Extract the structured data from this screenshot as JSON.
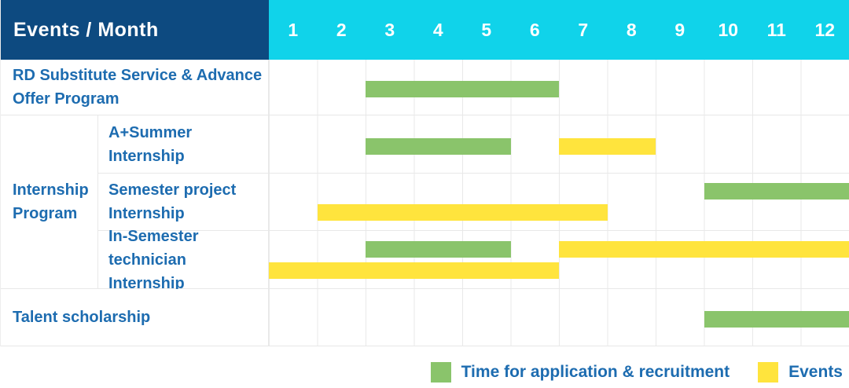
{
  "colors": {
    "header_bg": "#0d4a80",
    "month_header_bg": "#10d3ea",
    "header_text": "#ffffff",
    "label_text": "#1d6cb0",
    "grid_line": "#e9e9e9",
    "green": "#8ac46b",
    "yellow": "#ffe43d"
  },
  "chart_data": {
    "type": "table",
    "subtype": "gantt-timeline",
    "title": "Events / Month",
    "x_categories": [
      "1",
      "2",
      "3",
      "4",
      "5",
      "6",
      "7",
      "8",
      "9",
      "10",
      "11",
      "12"
    ],
    "x_range": [
      1,
      12
    ],
    "grid": true,
    "legend_position": "bottom-right",
    "legend": [
      {
        "label": "Time for application & recruitment",
        "color_key": "green",
        "color": "#8ac46b"
      },
      {
        "label": "Events",
        "color_key": "yellow",
        "color": "#ffe43d"
      }
    ],
    "rows": [
      {
        "group": "",
        "label": "RD Substitute Service & Advance Offer Program",
        "bars": [
          {
            "series": "Time for application & recruitment",
            "color": "green",
            "start_month": 3,
            "end_month": 6,
            "line": "single"
          }
        ]
      },
      {
        "group": "Internship Program",
        "label": "A+Summer Internship",
        "bars": [
          {
            "series": "Time for application & recruitment",
            "color": "green",
            "start_month": 3,
            "end_month": 5,
            "line": "single"
          },
          {
            "series": "Events",
            "color": "yellow",
            "start_month": 7,
            "end_month": 8,
            "line": "single"
          }
        ]
      },
      {
        "group": "Internship Program",
        "label": "Semester project Internship",
        "bars": [
          {
            "series": "Time for application & recruitment",
            "color": "green",
            "start_month": 10,
            "end_month": 12,
            "line": "top"
          },
          {
            "series": "Events",
            "color": "yellow",
            "start_month": 2,
            "end_month": 7,
            "line": "bottom"
          }
        ]
      },
      {
        "group": "Internship Program",
        "label": "In-Semester technician Internship",
        "bars": [
          {
            "series": "Time for application & recruitment",
            "color": "green",
            "start_month": 3,
            "end_month": 5,
            "line": "top"
          },
          {
            "series": "Events",
            "color": "yellow",
            "start_month": 7,
            "end_month": 12,
            "line": "top"
          },
          {
            "series": "Events",
            "color": "yellow",
            "start_month": 1,
            "end_month": 6,
            "line": "bottom"
          }
        ]
      },
      {
        "group": "",
        "label": "Talent scholarship",
        "bars": [
          {
            "series": "Time for application & recruitment",
            "color": "green",
            "start_month": 10,
            "end_month": 12,
            "line": "single"
          }
        ]
      }
    ]
  }
}
